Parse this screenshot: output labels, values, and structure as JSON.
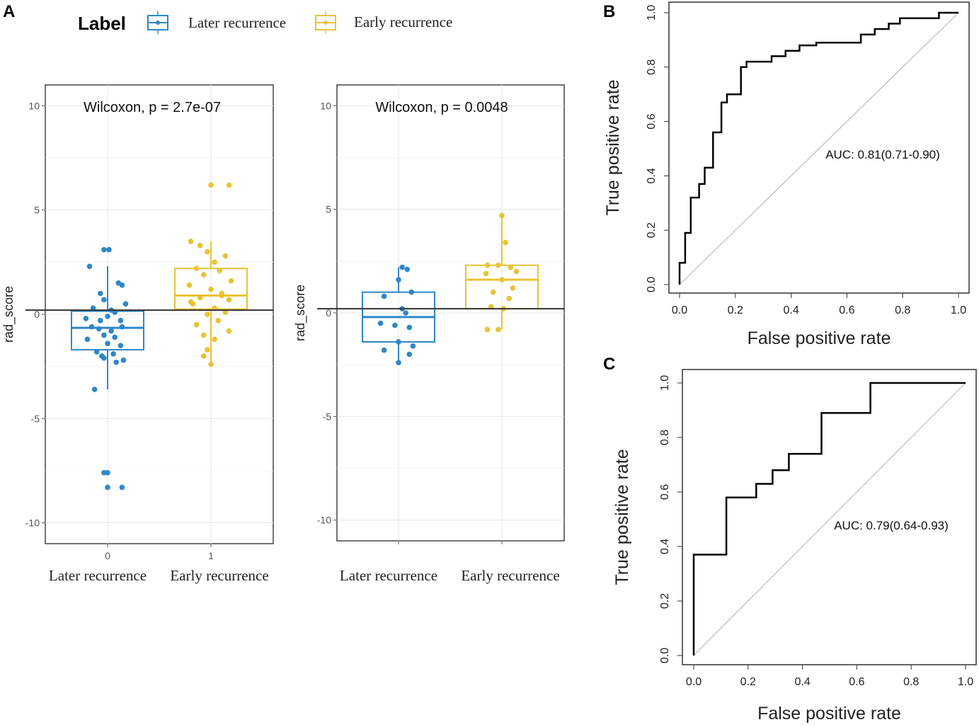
{
  "panel_letters": {
    "a": "A",
    "b": "B",
    "c": "C"
  },
  "legend": {
    "title": "Label",
    "items": [
      {
        "label": "Later recurrence",
        "color": "#2f87c8"
      },
      {
        "label": "Early recurrence",
        "color": "#e9c234"
      }
    ]
  },
  "chart_data": [
    {
      "id": "A-left",
      "type": "box",
      "annotation": "Wilcoxon, p = 2.7e-07",
      "ylabel": "rad_score",
      "ylim": [
        -11,
        11
      ],
      "yticks": [
        10,
        5,
        0,
        -5,
        -10
      ],
      "ytick_labels": [
        "10",
        "5",
        "0",
        "-5",
        "-10"
      ],
      "xticks": [
        "0",
        "1"
      ],
      "categories": [
        "Later recurrence",
        "Early recurrence"
      ],
      "cutoff": 0.2,
      "groups": [
        {
          "name": "Later recurrence",
          "color": "#2f87c8",
          "q1": -1.7,
          "median": -0.65,
          "q3": 0.15,
          "whisker_low": -3.6,
          "whisker_high": 2.3,
          "points": [
            [
              -0.05,
              3.1
            ],
            [
              0.02,
              3.1
            ],
            [
              -0.25,
              2.3
            ],
            [
              0.15,
              1.5
            ],
            [
              0.2,
              1.4
            ],
            [
              -0.1,
              1.0
            ],
            [
              -0.05,
              0.7
            ],
            [
              0.25,
              0.5
            ],
            [
              -0.2,
              0.3
            ],
            [
              0.1,
              0.1
            ],
            [
              0.05,
              0.2
            ],
            [
              -0.3,
              -0.2
            ],
            [
              0.0,
              -0.1
            ],
            [
              -0.1,
              -0.3
            ],
            [
              0.18,
              -0.3
            ],
            [
              -0.22,
              -0.6
            ],
            [
              -0.12,
              -0.7
            ],
            [
              0.05,
              -0.8
            ],
            [
              0.2,
              -0.6
            ],
            [
              -0.05,
              -1.0
            ],
            [
              0.1,
              -1.1
            ],
            [
              -0.28,
              -1.2
            ],
            [
              0.0,
              -1.4
            ],
            [
              0.18,
              -1.5
            ],
            [
              -0.15,
              -1.8
            ],
            [
              0.08,
              -1.9
            ],
            [
              -0.05,
              -2.1
            ],
            [
              0.22,
              -2.2
            ],
            [
              0.12,
              -2.3
            ],
            [
              -0.08,
              -2.0
            ],
            [
              -0.18,
              -3.6
            ],
            [
              -0.05,
              -7.6
            ],
            [
              0.0,
              -7.6
            ],
            [
              0.0,
              -8.3
            ],
            [
              0.2,
              -8.3
            ]
          ]
        },
        {
          "name": "Early recurrence",
          "color": "#e9c234",
          "q1": 0.25,
          "median": 0.9,
          "q3": 2.2,
          "whisker_low": -2.4,
          "whisker_high": 3.5,
          "points": [
            [
              0.0,
              6.2
            ],
            [
              0.25,
              6.2
            ],
            [
              -0.28,
              3.5
            ],
            [
              -0.15,
              3.3
            ],
            [
              0.2,
              2.8
            ],
            [
              -0.05,
              3.0
            ],
            [
              0.05,
              2.5
            ],
            [
              -0.2,
              2.2
            ],
            [
              0.12,
              2.1
            ],
            [
              -0.1,
              1.9
            ],
            [
              0.28,
              1.6
            ],
            [
              -0.3,
              1.4
            ],
            [
              0.0,
              1.2
            ],
            [
              0.15,
              1.0
            ],
            [
              -0.15,
              0.8
            ],
            [
              0.25,
              0.7
            ],
            [
              -0.25,
              0.5
            ],
            [
              0.05,
              0.3
            ],
            [
              0.2,
              0.1
            ],
            [
              -0.05,
              0.0
            ],
            [
              0.1,
              -0.3
            ],
            [
              -0.2,
              -0.5
            ],
            [
              0.25,
              -0.8
            ],
            [
              -0.1,
              -1.0
            ],
            [
              0.05,
              -1.2
            ],
            [
              -0.05,
              -1.7
            ],
            [
              -0.1,
              -2.0
            ],
            [
              0.0,
              -2.4
            ],
            [
              0.15,
              0.9
            ],
            [
              -0.28,
              0.6
            ]
          ]
        }
      ]
    },
    {
      "id": "A-right",
      "type": "box",
      "annotation": "Wilcoxon, p = 0.0048",
      "ylabel": "rad_score",
      "ylim": [
        -11,
        11
      ],
      "yticks": [
        10,
        5,
        0,
        -5,
        -10
      ],
      "ytick_labels": [
        "10",
        "5",
        "0",
        "-5",
        "-10"
      ],
      "categories": [
        "Later recurrence",
        "Early recurrence"
      ],
      "cutoff": 0.2,
      "groups": [
        {
          "name": "Later recurrence",
          "color": "#2f87c8",
          "q1": -1.4,
          "median": -0.2,
          "q3": 1.0,
          "whisker_low": -2.4,
          "whisker_high": 2.2,
          "points": [
            [
              0.05,
              2.2
            ],
            [
              0.12,
              2.1
            ],
            [
              0.0,
              1.6
            ],
            [
              0.18,
              1.0
            ],
            [
              -0.2,
              0.8
            ],
            [
              0.05,
              0.2
            ],
            [
              0.1,
              0.0
            ],
            [
              -0.25,
              -0.5
            ],
            [
              -0.05,
              -0.6
            ],
            [
              0.15,
              -0.7
            ],
            [
              0.0,
              -1.4
            ],
            [
              0.2,
              -1.6
            ],
            [
              -0.2,
              -1.8
            ],
            [
              0.15,
              -2.0
            ],
            [
              0.0,
              -2.4
            ]
          ]
        },
        {
          "name": "Early recurrence",
          "color": "#e9c234",
          "q1": 0.2,
          "median": 1.6,
          "q3": 2.3,
          "whisker_low": -0.8,
          "whisker_high": 4.7,
          "points": [
            [
              0.0,
              4.7
            ],
            [
              0.05,
              3.4
            ],
            [
              -0.2,
              2.3
            ],
            [
              0.12,
              2.2
            ],
            [
              0.2,
              2.0
            ],
            [
              -0.05,
              2.3
            ],
            [
              -0.22,
              1.9
            ],
            [
              0.0,
              1.6
            ],
            [
              0.15,
              1.2
            ],
            [
              -0.12,
              1.0
            ],
            [
              0.1,
              0.7
            ],
            [
              0.02,
              0.2
            ],
            [
              -0.15,
              0.3
            ],
            [
              -0.2,
              -0.8
            ],
            [
              -0.05,
              -0.8
            ]
          ]
        }
      ]
    },
    {
      "id": "B",
      "type": "line",
      "xlabel": "False  positive rate",
      "ylabel": "True positive rate",
      "xlim": [
        0,
        1
      ],
      "ylim": [
        0,
        1
      ],
      "xticks": [
        "0.0",
        "0.2",
        "0.4",
        "0.6",
        "0.8",
        "1.0"
      ],
      "yticks": [
        "0.0",
        "0.2",
        "0.4",
        "0.6",
        "0.8",
        "1.0"
      ],
      "annotation": "AUC: 0.81(0.71-0.90)",
      "x": [
        0,
        0,
        0.02,
        0.02,
        0.04,
        0.04,
        0.07,
        0.07,
        0.09,
        0.09,
        0.12,
        0.12,
        0.15,
        0.15,
        0.17,
        0.17,
        0.22,
        0.22,
        0.24,
        0.24,
        0.33,
        0.33,
        0.38,
        0.38,
        0.43,
        0.43,
        0.49,
        0.49,
        0.65,
        0.65,
        0.7,
        0.7,
        0.75,
        0.75,
        0.79,
        0.79,
        0.93,
        0.93,
        1.0
      ],
      "y": [
        0,
        0.08,
        0.08,
        0.19,
        0.19,
        0.32,
        0.32,
        0.37,
        0.37,
        0.43,
        0.43,
        0.56,
        0.56,
        0.67,
        0.67,
        0.7,
        0.7,
        0.8,
        0.8,
        0.82,
        0.82,
        0.84,
        0.84,
        0.86,
        0.86,
        0.88,
        0.88,
        0.89,
        0.89,
        0.92,
        0.92,
        0.94,
        0.94,
        0.96,
        0.96,
        0.98,
        0.98,
        1.0,
        1.0
      ]
    },
    {
      "id": "C",
      "type": "line",
      "xlabel": "False  positive rate",
      "ylabel": "True positive rate",
      "xlim": [
        0,
        1
      ],
      "ylim": [
        0,
        1
      ],
      "xticks": [
        "0.0",
        "0.2",
        "0.4",
        "0.6",
        "0.8",
        "1.0"
      ],
      "yticks": [
        "0.0",
        "0.2",
        "0.4",
        "0.6",
        "0.8",
        "1.0"
      ],
      "annotation": "AUC: 0.79(0.64-0.93)",
      "x": [
        0,
        0,
        0.12,
        0.12,
        0.23,
        0.23,
        0.29,
        0.29,
        0.35,
        0.35,
        0.47,
        0.47,
        0.65,
        0.65,
        1.0
      ],
      "y": [
        0,
        0.37,
        0.37,
        0.58,
        0.58,
        0.63,
        0.63,
        0.68,
        0.68,
        0.74,
        0.74,
        0.89,
        0.89,
        1.0,
        1.0
      ]
    }
  ]
}
